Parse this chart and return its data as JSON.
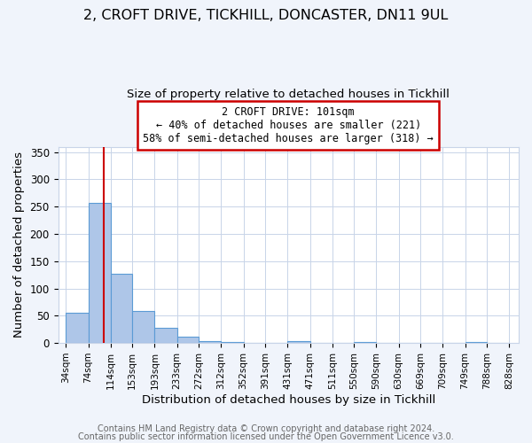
{
  "title": "2, CROFT DRIVE, TICKHILL, DONCASTER, DN11 9UL",
  "subtitle": "Size of property relative to detached houses in Tickhill",
  "xlabel": "Distribution of detached houses by size in Tickhill",
  "ylabel": "Number of detached properties",
  "bar_left_edges": [
    34,
    74,
    114,
    153,
    193,
    233,
    272,
    312,
    352,
    391,
    431,
    471,
    511,
    550,
    590,
    630,
    669,
    709,
    749,
    788
  ],
  "bar_widths": [
    40,
    40,
    39,
    40,
    40,
    39,
    40,
    40,
    39,
    40,
    40,
    40,
    39,
    40,
    40,
    39,
    40,
    40,
    39,
    40
  ],
  "bar_heights": [
    55,
    257,
    127,
    58,
    27,
    12,
    4,
    1,
    0,
    0,
    3,
    0,
    0,
    1,
    0,
    0,
    0,
    0,
    1,
    0
  ],
  "x_tick_labels": [
    "34sqm",
    "74sqm",
    "114sqm",
    "153sqm",
    "193sqm",
    "233sqm",
    "272sqm",
    "312sqm",
    "352sqm",
    "391sqm",
    "431sqm",
    "471sqm",
    "511sqm",
    "550sqm",
    "590sqm",
    "630sqm",
    "669sqm",
    "709sqm",
    "749sqm",
    "788sqm",
    "828sqm"
  ],
  "x_tick_positions": [
    34,
    74,
    114,
    153,
    193,
    233,
    272,
    312,
    352,
    391,
    431,
    471,
    511,
    550,
    590,
    630,
    669,
    709,
    749,
    788,
    828
  ],
  "ylim": [
    0,
    360
  ],
  "xlim": [
    20,
    845
  ],
  "bar_color": "#aec6e8",
  "bar_edge_color": "#5b9bd5",
  "vline_x": 101,
  "vline_color": "#cc0000",
  "annotation_title": "2 CROFT DRIVE: 101sqm",
  "annotation_line1": "← 40% of detached houses are smaller (221)",
  "annotation_line2": "58% of semi-detached houses are larger (318) →",
  "annotation_box_color": "#cc0000",
  "footer_line1": "Contains HM Land Registry data © Crown copyright and database right 2024.",
  "footer_line2": "Contains public sector information licensed under the Open Government Licence v3.0.",
  "bg_color": "#f0f4fb",
  "plot_bg_color": "#ffffff",
  "grid_color": "#c8d4e8",
  "title_fontsize": 11.5,
  "subtitle_fontsize": 9.5,
  "axis_label_fontsize": 9.5,
  "tick_fontsize": 7.5,
  "footer_fontsize": 7.0,
  "yticks": [
    0,
    50,
    100,
    150,
    200,
    250,
    300,
    350
  ]
}
